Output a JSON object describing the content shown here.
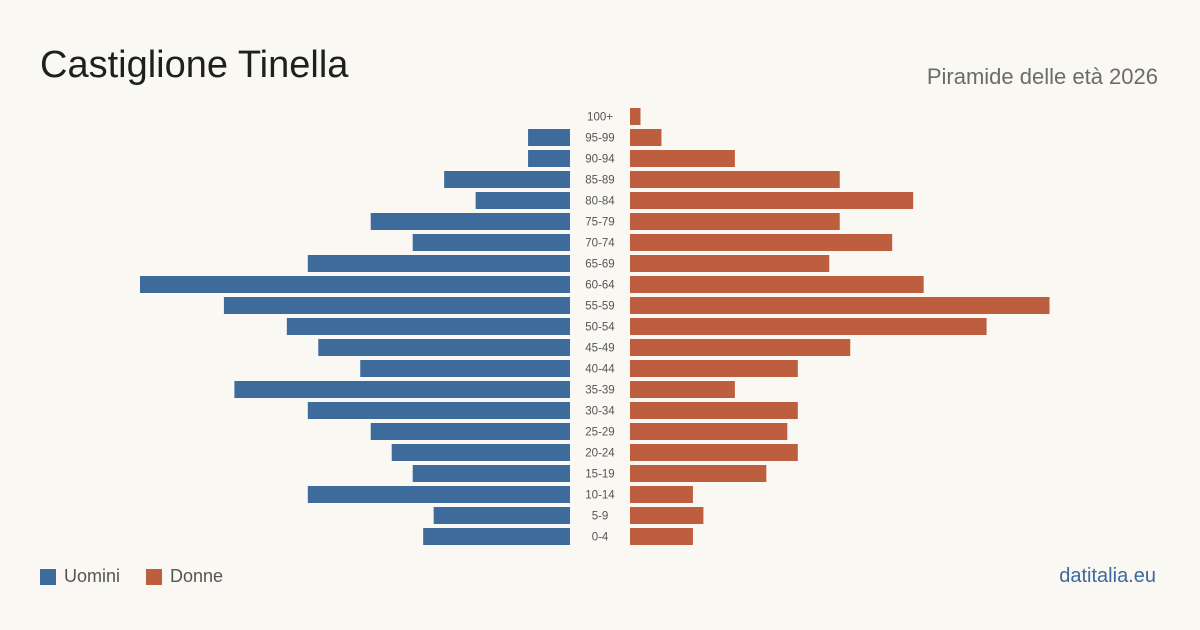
{
  "header": {
    "title": "Castiglione Tinella",
    "subtitle": "Piramide delle età 2026"
  },
  "legend": {
    "men_label": "Uomini",
    "women_label": "Donne"
  },
  "brand": "datitalia.eu",
  "colors": {
    "men": "#3d6b9c",
    "women": "#bd5e3e",
    "background": "#faf8f3"
  },
  "chart_data": {
    "type": "bar",
    "orientation": "horizontal-pyramid",
    "categories": [
      "100+",
      "95-99",
      "90-94",
      "85-89",
      "80-84",
      "75-79",
      "70-74",
      "65-69",
      "60-64",
      "55-59",
      "50-54",
      "45-49",
      "40-44",
      "35-39",
      "30-34",
      "25-29",
      "20-24",
      "15-19",
      "10-14",
      "5-9",
      "0-4"
    ],
    "series": [
      {
        "name": "Uomini",
        "values": [
          0,
          4,
          4,
          12,
          9,
          19,
          15,
          25,
          41,
          33,
          27,
          24,
          20,
          32,
          25,
          19,
          17,
          15,
          25,
          13,
          14
        ]
      },
      {
        "name": "Donne",
        "values": [
          1,
          3,
          10,
          20,
          27,
          20,
          25,
          19,
          28,
          40,
          34,
          21,
          16,
          10,
          16,
          15,
          16,
          13,
          6,
          7,
          6
        ]
      }
    ],
    "title": "Piramide delle età 2026",
    "xlabel": "",
    "ylabel": "",
    "xlim": [
      0,
      41
    ],
    "grid": false,
    "legend_position": "bottom-left"
  }
}
